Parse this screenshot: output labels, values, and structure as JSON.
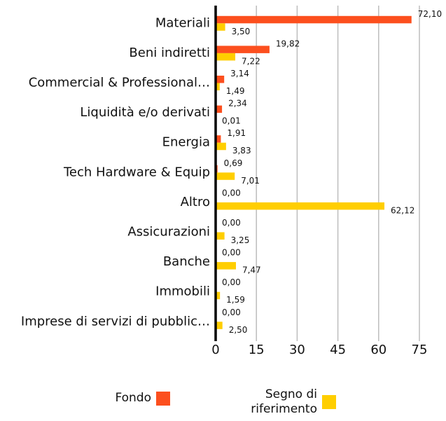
{
  "chart_data": {
    "type": "bar",
    "orientation": "horizontal",
    "categories": [
      "Materiali",
      "Beni indiretti",
      "Commercial & Professional…",
      "Liquidità e/o derivati",
      "Energia",
      "Tech Hardware & Equip",
      "Altro",
      "Assicurazioni",
      "Banche",
      "Immobili",
      "Imprese di servizi di pubblic…"
    ],
    "series": [
      {
        "name": "Fondo",
        "color": "#fc4f1e",
        "values": [
          72.1,
          19.82,
          3.14,
          2.34,
          1.91,
          0.69,
          0.0,
          0.0,
          0.0,
          0.0,
          0.0
        ],
        "value_labels": [
          "72,10",
          "19,82",
          "3,14",
          "2,34",
          "1,91",
          "0,69",
          "0,00",
          "0,00",
          "0,00",
          "0,00",
          "0,00"
        ]
      },
      {
        "name": "Segno di riferimento",
        "color": "#ffce00",
        "values": [
          3.5,
          7.22,
          1.49,
          0.01,
          3.83,
          7.01,
          62.12,
          3.25,
          7.47,
          1.59,
          2.5
        ],
        "value_labels": [
          "3,50",
          "7,22",
          "1,49",
          "0,01",
          "3,83",
          "7,01",
          "62,12",
          "3,25",
          "7,47",
          "1,59",
          "2,50"
        ]
      }
    ],
    "xlim": [
      0,
      75
    ],
    "xticks": [
      0,
      15,
      30,
      45,
      60,
      75
    ],
    "grid": true
  }
}
